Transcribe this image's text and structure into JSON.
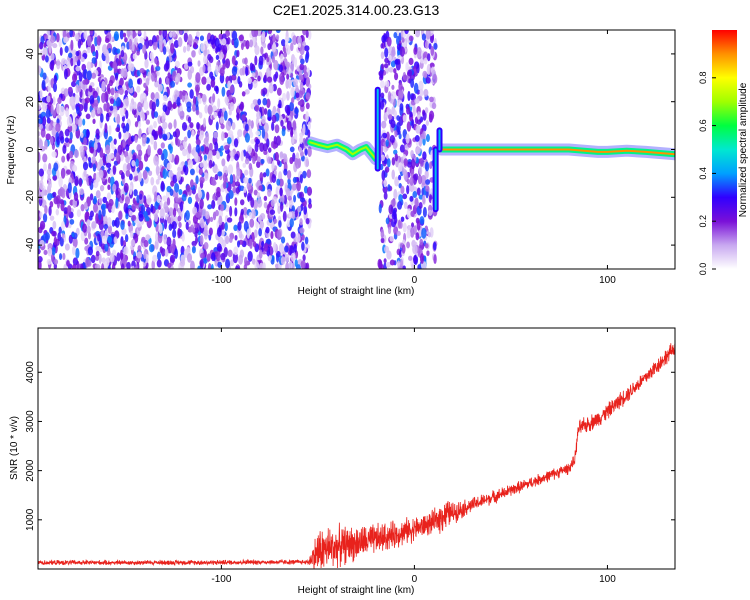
{
  "title": "C2E1.2025.314.00.23.G13",
  "chart_data": [
    {
      "type": "heatmap",
      "title": "C2E1.2025.314.00.23.G13",
      "xlabel": "Height of straight line (km)",
      "ylabel": "Frequency (Hz)",
      "xlim": [
        -195,
        135
      ],
      "ylim": [
        -50,
        50
      ],
      "xticks": [
        -100,
        0,
        100
      ],
      "yticks": [
        -40,
        -20,
        0,
        20,
        40
      ],
      "colorbar": {
        "label": "Normalized spectral amplitude",
        "range": [
          0.0,
          1.0
        ],
        "ticks": [
          0.0,
          0.2,
          0.4,
          0.6,
          0.8
        ],
        "colormap": [
          "#ffffff",
          "#c8a8f0",
          "#7a10d8",
          "#3000ff",
          "#00a0ff",
          "#00e8d0",
          "#00ff40",
          "#a0ff00",
          "#ffff00",
          "#ff9000",
          "#ff0000"
        ]
      },
      "regions": [
        {
          "name": "noise",
          "x": [
            -195,
            -54
          ],
          "freq": [
            -50,
            50
          ],
          "amplitude": 0.15
        },
        {
          "name": "noise",
          "x": [
            -18,
            11
          ],
          "freq": [
            -50,
            50
          ],
          "amplitude": 0.15
        }
      ],
      "tracks": [
        {
          "x": [
            -54,
            -50,
            -45,
            -40,
            -35,
            -32,
            -28,
            -25,
            -22,
            -20
          ],
          "freq": [
            3,
            2,
            1,
            2,
            0,
            -2,
            0,
            1,
            -2,
            -4
          ],
          "amplitude": 0.7
        },
        {
          "x": [
            14,
            20,
            40,
            60,
            80,
            95,
            100,
            110,
            120,
            135
          ],
          "freq": [
            0,
            0,
            0,
            0,
            0,
            -1,
            -1,
            -0.5,
            -1,
            -2
          ],
          "amplitude": 0.9
        }
      ],
      "spikes": [
        {
          "x": -19,
          "freq": [
            -8,
            25
          ]
        },
        {
          "x": 11,
          "freq": [
            -25,
            0
          ]
        },
        {
          "x": 13,
          "freq": [
            0,
            8
          ]
        }
      ]
    },
    {
      "type": "line",
      "xlabel": "Height of straight line (km)",
      "ylabel": "SNR (10 * v/v)",
      "xlim": [
        -195,
        135
      ],
      "ylim": [
        0,
        4900
      ],
      "xticks": [
        -100,
        0,
        100
      ],
      "yticks": [
        1000,
        2000,
        3000,
        4000
      ],
      "series": [
        {
          "name": "SNR",
          "color": "#e8221c",
          "x": [
            -195,
            -150,
            -100,
            -75,
            -55,
            -50,
            -45,
            -40,
            -35,
            -30,
            -25,
            -20,
            -15,
            -10,
            -5,
            0,
            5,
            10,
            15,
            20,
            30,
            40,
            50,
            60,
            70,
            80,
            83,
            85,
            90,
            95,
            100,
            110,
            120,
            130,
            135
          ],
          "values": [
            130,
            130,
            135,
            140,
            140,
            350,
            420,
            450,
            500,
            520,
            560,
            600,
            650,
            700,
            760,
            820,
            880,
            950,
            1100,
            1150,
            1300,
            1450,
            1600,
            1750,
            1900,
            2050,
            2200,
            2850,
            2950,
            3050,
            3200,
            3550,
            3900,
            4300,
            4500
          ],
          "noise": [
            60,
            60,
            60,
            60,
            60,
            600,
            550,
            500,
            450,
            420,
            400,
            380,
            350,
            330,
            320,
            300,
            280,
            280,
            420,
            260,
            180,
            160,
            150,
            140,
            140,
            140,
            140,
            200,
            200,
            200,
            200,
            200,
            200,
            200,
            200
          ]
        }
      ]
    }
  ]
}
